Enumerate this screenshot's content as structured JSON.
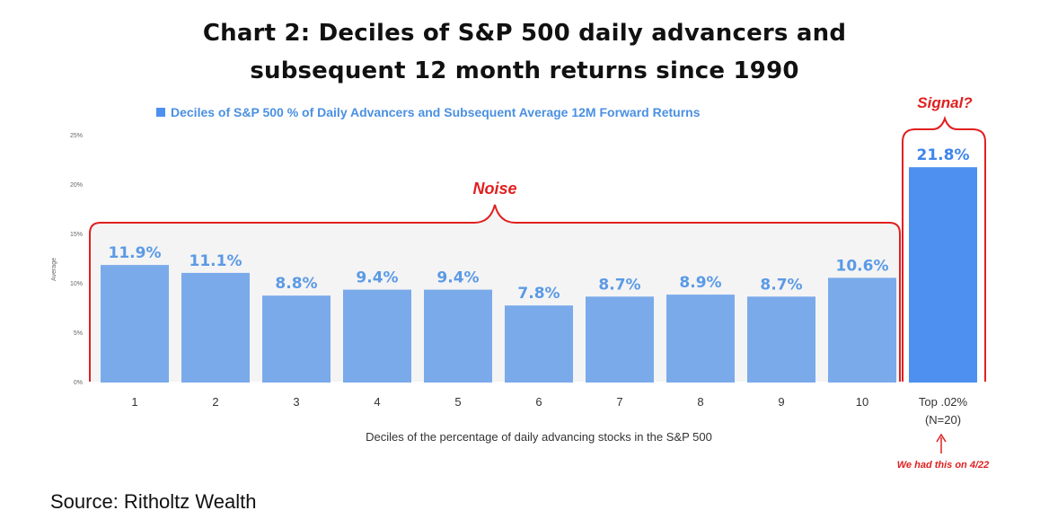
{
  "header": {
    "title_line1": "Chart 2: Deciles of S&P 500 daily advancers and",
    "title_line2": "subsequent 12 month returns since 1990"
  },
  "source": "Source: Ritholtz Wealth",
  "chart_data": {
    "type": "bar",
    "legend": "Deciles of S&P 500 % of Daily Advancers and Subsequent Average 12M Forward Returns",
    "legend_position": "top",
    "xlabel": "Deciles of the percentage of daily advancing stocks in the S&P 500",
    "ylabel": "Average",
    "ylim": [
      0,
      25
    ],
    "y_ticks": [
      "0%",
      "5%",
      "10%",
      "15%",
      "20%",
      "25%"
    ],
    "grid": false,
    "categories": [
      "1",
      "2",
      "3",
      "4",
      "5",
      "6",
      "7",
      "8",
      "9",
      "10",
      "Top .02%"
    ],
    "category_sublabels": [
      "",
      "",
      "",
      "",
      "",
      "",
      "",
      "",
      "",
      "",
      "(N=20)"
    ],
    "values": [
      11.9,
      11.1,
      8.8,
      9.4,
      9.4,
      7.8,
      8.7,
      8.9,
      8.7,
      10.6,
      21.8
    ],
    "value_labels": [
      "11.9%",
      "11.1%",
      "8.8%",
      "9.4%",
      "9.4%",
      "7.8%",
      "8.7%",
      "8.9%",
      "8.7%",
      "10.6%",
      "21.8%"
    ],
    "annotations": {
      "noise": "Noise",
      "signal": "Signal?",
      "note": "We had this on 4/22"
    },
    "colors": {
      "bar": "#7aaaea",
      "bar_highlight": "#4d90f0",
      "value_label": "#5b9ae6",
      "value_label_highlight": "#3f85ec",
      "annotation": "#e02020"
    }
  }
}
